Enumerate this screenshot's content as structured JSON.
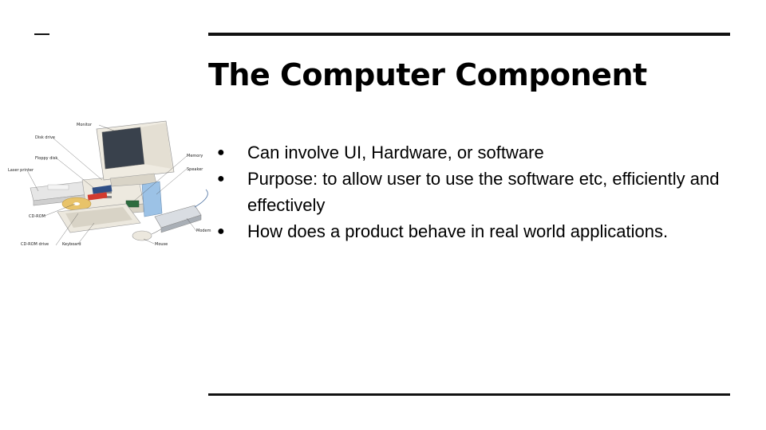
{
  "slide": {
    "title": "The Computer Component",
    "bullets": [
      "Can involve UI, Hardware, or software",
      "Purpose: to allow user to use the software etc, efficiently and effectively",
      "How does a product behave in real world applications."
    ],
    "bullet_glyph": "●"
  },
  "illustration": {
    "labels": {
      "monitor": "Monitor",
      "disk_drive": "Disk drive",
      "floppy_disk": "Floppy disk",
      "laser_printer": "Laser printer",
      "cd_rom": "CD-ROM",
      "cd_rom_drive": "CD-ROM drive",
      "keyboard": "Keyboard",
      "mouse": "Mouse",
      "memory": "Memory",
      "speaker": "Speaker",
      "modem": "Modem"
    }
  }
}
